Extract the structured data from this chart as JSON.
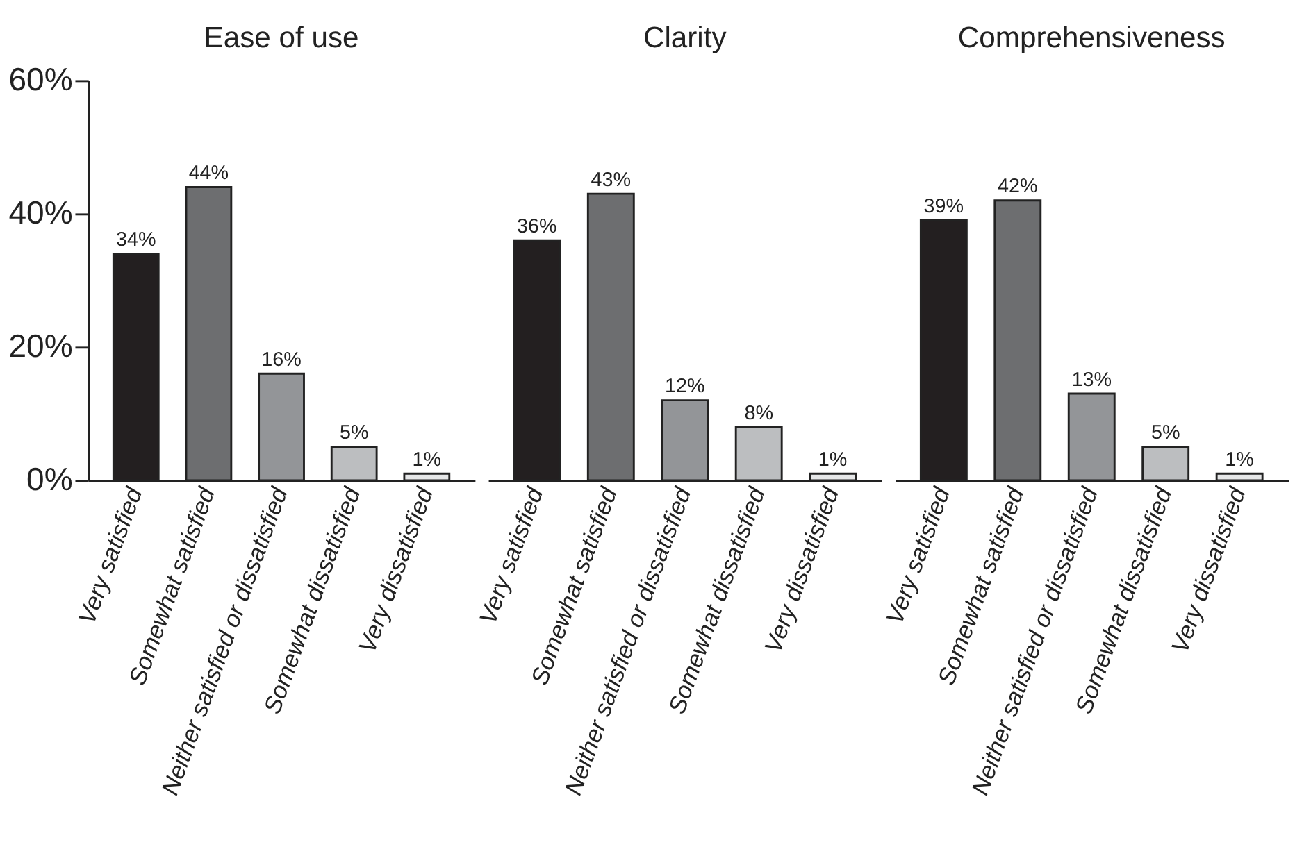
{
  "chart_data": [
    {
      "type": "bar",
      "title": "Ease of use",
      "categories": [
        "Very satisfied",
        "Somewhat satisfied",
        "Neither satisfied or dissatisfied",
        "Somewhat dissatisfied",
        "Very dissatisfied"
      ],
      "values": [
        34,
        44,
        16,
        5,
        1
      ],
      "colors": [
        "#231f20",
        "#6d6e70",
        "#939598",
        "#bcbec0",
        "#e6e7e8"
      ],
      "value_labels": [
        "34%",
        "44%",
        "16%",
        "5%",
        "1%"
      ],
      "ylim": [
        0,
        60
      ],
      "yticks": [
        {
          "value": 0,
          "label": "0%"
        },
        {
          "value": 20,
          "label": "20%"
        },
        {
          "value": 40,
          "label": "40%"
        },
        {
          "value": 60,
          "label": "60%"
        }
      ],
      "grid": false,
      "legend": false
    },
    {
      "type": "bar",
      "title": "Clarity",
      "categories": [
        "Very satisfied",
        "Somewhat satisfied",
        "Neither satisfied or dissatisfied",
        "Somewhat dissatisfied",
        "Very dissatisfied"
      ],
      "values": [
        36,
        43,
        12,
        8,
        1
      ],
      "colors": [
        "#231f20",
        "#6d6e70",
        "#939598",
        "#bcbec0",
        "#e6e7e8"
      ],
      "value_labels": [
        "36%",
        "43%",
        "12%",
        "8%",
        "1%"
      ],
      "ylim": [
        0,
        60
      ],
      "tick_labels": "x",
      "grid": false,
      "legend": false
    },
    {
      "type": "bar",
      "title": "Comprehensiveness",
      "categories": [
        "Very satisfied",
        "Somewhat satisfied",
        "Neither satisfied or dissatisfied",
        "Somewhat dissatisfied",
        "Very dissatisfied"
      ],
      "values": [
        39,
        42,
        13,
        5,
        1
      ],
      "colors": [
        "#231f20",
        "#6d6e70",
        "#939598",
        "#bcbec0",
        "#e6e7e8"
      ],
      "value_labels": [
        "39%",
        "42%",
        "13%",
        "5%",
        "1%"
      ],
      "ylim": [
        0,
        60
      ],
      "tick_labels": "x",
      "grid": false,
      "legend": false
    }
  ]
}
